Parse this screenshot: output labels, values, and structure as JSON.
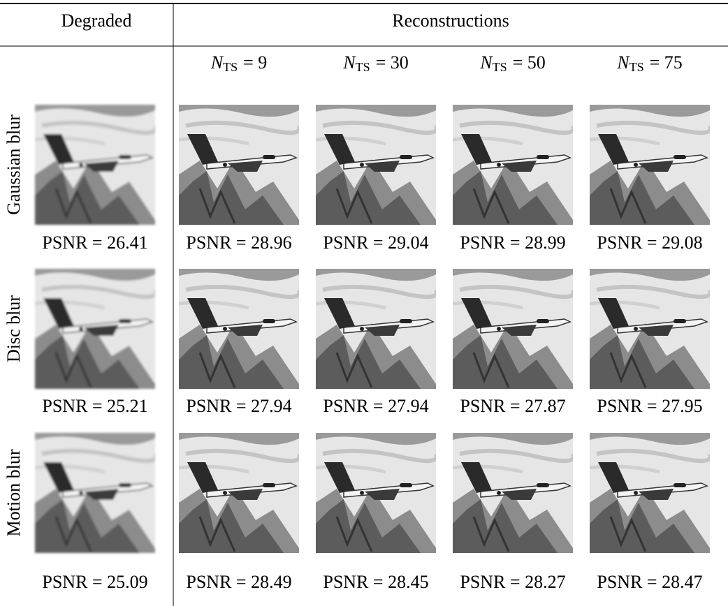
{
  "header": {
    "degraded": "Degraded",
    "reconstructions": "Reconstructions"
  },
  "columns": [
    {
      "symbol": "N",
      "subscript": "TS",
      "text": "= 9"
    },
    {
      "symbol": "N",
      "subscript": "TS",
      "text": "= 30"
    },
    {
      "symbol": "N",
      "subscript": "TS",
      "text": "= 50"
    },
    {
      "symbol": "N",
      "subscript": "TS",
      "text": "= 75"
    }
  ],
  "rows": [
    {
      "label": "Gaussian blur",
      "psnr": [
        "PSNR = 26.41",
        "PSNR = 28.96",
        "PSNR = 29.04",
        "PSNR = 28.99",
        "PSNR = 29.08"
      ]
    },
    {
      "label": "Disc blur",
      "psnr": [
        "PSNR = 25.21",
        "PSNR = 27.94",
        "PSNR = 27.94",
        "PSNR = 27.87",
        "PSNR = 27.95"
      ]
    },
    {
      "label": "Motion blur",
      "psnr": [
        "PSNR = 25.09",
        "PSNR = 28.49",
        "PSNR = 28.45",
        "PSNR = 28.27",
        "PSNR = 28.47"
      ]
    }
  ]
}
